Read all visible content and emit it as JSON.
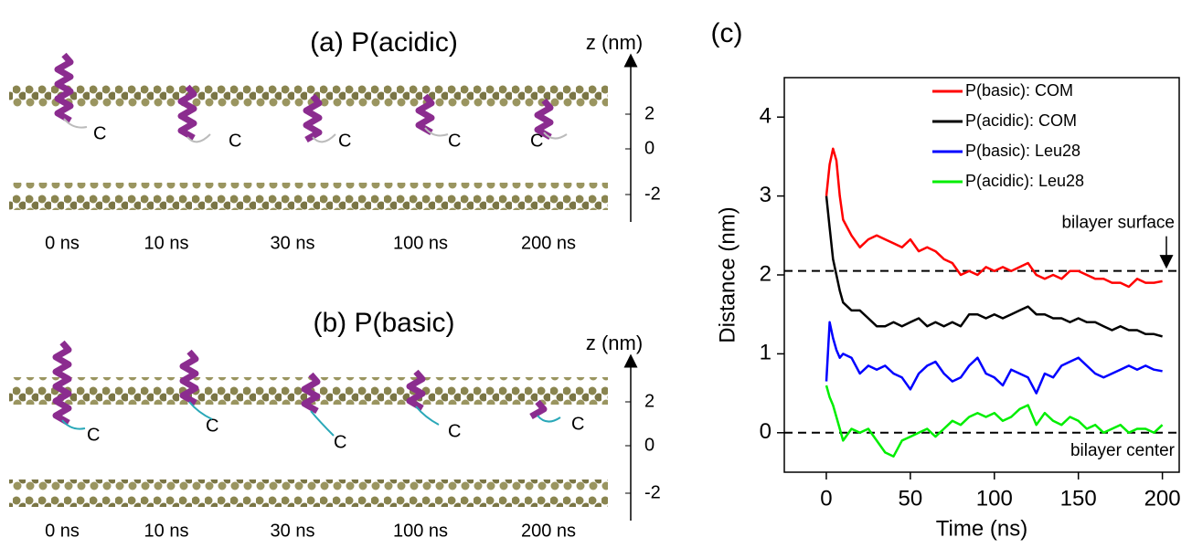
{
  "panels": [
    {
      "title": "(a) P(acidic)",
      "z_label": "z (nm)",
      "z_ticks": [
        "2",
        "0",
        "-2"
      ],
      "times": [
        "0 ns",
        "10 ns",
        "30 ns",
        "100 ns",
        "200 ns"
      ],
      "terminal_labels": [
        "C",
        "C",
        "C",
        "C",
        "C"
      ]
    },
    {
      "title": "(b) P(basic)",
      "z_label": "z (nm)",
      "z_ticks": [
        "2",
        "0",
        "-2"
      ],
      "times": [
        "0 ns",
        "10 ns",
        "30 ns",
        "100 ns",
        "200 ns"
      ],
      "terminal_labels": [
        "C",
        "C",
        "C",
        "C",
        "C"
      ]
    }
  ],
  "panel_c_label": "(c)",
  "chart_data": {
    "type": "line",
    "x_label": "Time (ns)",
    "y_label": "Distance (nm)",
    "xlim": [
      -25,
      210
    ],
    "ylim": [
      -0.5,
      4.5
    ],
    "xticks": [
      0,
      50,
      100,
      150,
      200
    ],
    "yticks": [
      0,
      1,
      2,
      3,
      4
    ],
    "legend": "upper right",
    "hlines": [
      {
        "value": 2.05,
        "label": "bilayer surface"
      },
      {
        "value": 0,
        "label": "bilayer center"
      }
    ],
    "x": [
      0,
      2,
      4,
      6,
      8,
      10,
      15,
      20,
      25,
      30,
      35,
      40,
      45,
      50,
      55,
      60,
      65,
      70,
      75,
      80,
      85,
      90,
      95,
      100,
      105,
      110,
      115,
      120,
      125,
      130,
      135,
      140,
      145,
      150,
      155,
      160,
      165,
      170,
      175,
      180,
      185,
      190,
      195,
      200
    ],
    "series": [
      {
        "name": "P(basic): COM",
        "color": "#ff0000",
        "values": [
          3.0,
          3.4,
          3.6,
          3.45,
          3.0,
          2.7,
          2.5,
          2.35,
          2.45,
          2.5,
          2.45,
          2.4,
          2.35,
          2.45,
          2.3,
          2.35,
          2.3,
          2.2,
          2.15,
          2.0,
          2.05,
          2.0,
          2.1,
          2.05,
          2.1,
          2.05,
          2.1,
          2.15,
          2.0,
          1.95,
          2.0,
          1.95,
          2.05,
          2.05,
          2.0,
          1.95,
          1.95,
          1.9,
          1.9,
          1.85,
          1.95,
          1.9,
          1.9,
          1.92
        ]
      },
      {
        "name": "P(acidic): COM",
        "color": "#000000",
        "values": [
          3.0,
          2.6,
          2.2,
          2.0,
          1.8,
          1.65,
          1.55,
          1.55,
          1.45,
          1.35,
          1.35,
          1.4,
          1.35,
          1.4,
          1.45,
          1.35,
          1.4,
          1.35,
          1.4,
          1.35,
          1.5,
          1.5,
          1.45,
          1.5,
          1.45,
          1.5,
          1.55,
          1.6,
          1.5,
          1.5,
          1.45,
          1.45,
          1.4,
          1.45,
          1.4,
          1.4,
          1.35,
          1.3,
          1.35,
          1.3,
          1.3,
          1.25,
          1.25,
          1.22
        ]
      },
      {
        "name": "P(basic): Leu28",
        "color": "#0000ff",
        "values": [
          0.65,
          1.4,
          1.2,
          1.05,
          0.95,
          1.0,
          0.95,
          0.75,
          0.85,
          0.8,
          0.85,
          0.75,
          0.7,
          0.55,
          0.75,
          0.85,
          0.9,
          0.75,
          0.65,
          0.7,
          0.85,
          0.95,
          0.75,
          0.7,
          0.6,
          0.8,
          0.75,
          0.7,
          0.5,
          0.75,
          0.7,
          0.85,
          0.9,
          0.95,
          0.85,
          0.75,
          0.7,
          0.75,
          0.8,
          0.85,
          0.8,
          0.85,
          0.8,
          0.78
        ]
      },
      {
        "name": "P(acidic): Leu28",
        "color": "#00ee00",
        "values": [
          0.6,
          0.45,
          0.35,
          0.2,
          0.05,
          -0.1,
          0.05,
          0.0,
          0.05,
          -0.1,
          -0.25,
          -0.3,
          -0.1,
          -0.05,
          0.0,
          0.05,
          -0.05,
          0.05,
          0.15,
          0.1,
          0.2,
          0.25,
          0.2,
          0.25,
          0.15,
          0.2,
          0.3,
          0.35,
          0.1,
          0.25,
          0.15,
          0.1,
          0.2,
          0.15,
          0.05,
          0.1,
          0.0,
          0.05,
          0.1,
          0.0,
          0.05,
          0.05,
          0.0,
          0.1
        ]
      }
    ]
  }
}
